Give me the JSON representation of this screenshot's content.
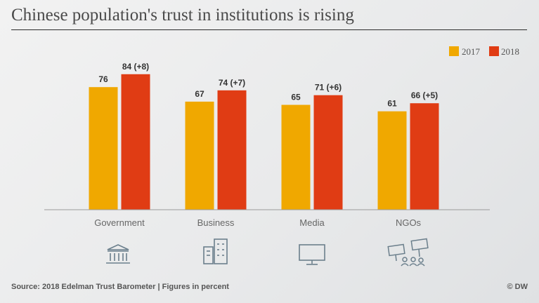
{
  "title": "Chinese population's trust in institutions is rising",
  "footer": {
    "source": "Source: 2018 Edelman Trust Barometer | Figures in percent",
    "credit": "© DW"
  },
  "colors": {
    "y2017": "#f0a800",
    "y2018": "#e03c14"
  },
  "icons": [
    "institution-icon",
    "buildings-icon",
    "monitor-icon",
    "protest-signs-icon"
  ],
  "chart_data": {
    "type": "bar",
    "categories": [
      "Government",
      "Business",
      "Media",
      "NGOs"
    ],
    "series": [
      {
        "name": "2017",
        "values": [
          76,
          67,
          65,
          61
        ],
        "labels": [
          "76",
          "67",
          "65",
          "61"
        ]
      },
      {
        "name": "2018",
        "values": [
          84,
          74,
          71,
          66
        ],
        "labels": [
          "84 (+8)",
          "74 (+7)",
          "71 (+6)",
          "66 (+5)"
        ]
      }
    ],
    "ylim": [
      0,
      100
    ],
    "grid": false,
    "legend_position": "top-right"
  }
}
